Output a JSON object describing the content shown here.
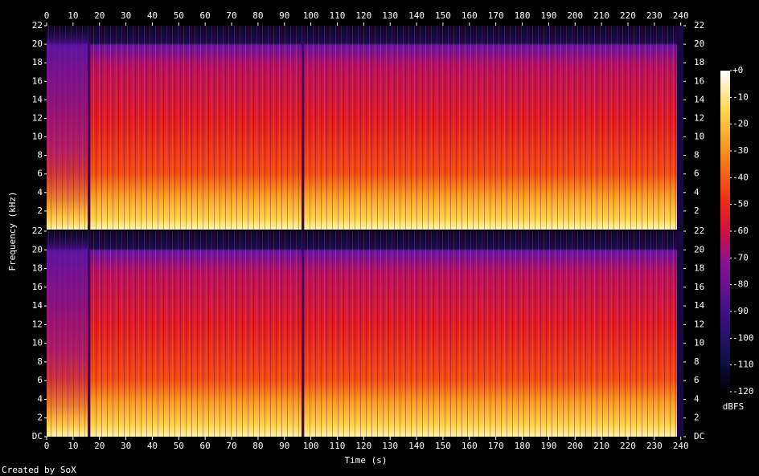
{
  "chart_data": {
    "type": "spectrogram",
    "x_label": "Time (s)",
    "y_label": "Frequency (kHz)",
    "xlim": [
      0,
      241
    ],
    "xticks": [
      0,
      10,
      20,
      30,
      40,
      50,
      60,
      70,
      80,
      90,
      100,
      110,
      120,
      130,
      140,
      150,
      160,
      170,
      180,
      190,
      200,
      210,
      220,
      230,
      240
    ],
    "panels": [
      {
        "ylim": [
          0,
          22
        ],
        "yticks": [
          2,
          4,
          6,
          8,
          10,
          12,
          14,
          16,
          18,
          20,
          22
        ]
      },
      {
        "ylim": [
          0,
          22
        ],
        "yticks": [
          {
            "value": 0,
            "label": "DC"
          },
          2,
          4,
          6,
          8,
          10,
          12,
          14,
          16,
          18,
          20,
          22
        ]
      }
    ],
    "colorbar": {
      "label": "dBFS",
      "lim": [
        -120,
        0
      ],
      "ticks": [
        {
          "value": 0,
          "label": "+0"
        },
        -10,
        -20,
        -30,
        -40,
        -50,
        -60,
        -70,
        -80,
        -90,
        -100,
        -110,
        -120
      ]
    },
    "footer": "Created by SoX"
  }
}
